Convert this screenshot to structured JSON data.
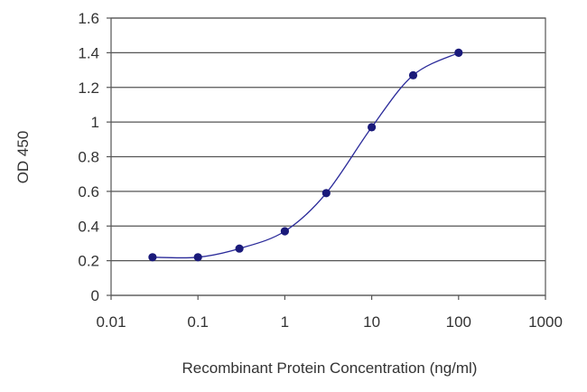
{
  "chart_data": {
    "type": "scatter",
    "title": "",
    "xlabel": "Recombinant Protein Concentration (ng/ml)",
    "ylabel": "OD 450",
    "x_scale": "log",
    "xlim": [
      0.01,
      1000
    ],
    "ylim": [
      0,
      1.6
    ],
    "x_ticks": [
      "0.01",
      "0.1",
      "1",
      "10",
      "100",
      "1000"
    ],
    "x_tick_values": [
      0.01,
      0.1,
      1,
      10,
      100,
      1000
    ],
    "y_ticks": [
      "0",
      "0.2",
      "0.4",
      "0.6",
      "0.8",
      "1",
      "1.2",
      "1.4",
      "1.6"
    ],
    "y_tick_values": [
      0,
      0.2,
      0.4,
      0.6,
      0.8,
      1,
      1.2,
      1.4,
      1.6
    ],
    "grid": "horizontal",
    "legend": "none",
    "series": [
      {
        "x": [
          0.03,
          0.1,
          0.3,
          1,
          3,
          10,
          30,
          100
        ],
        "y": [
          0.22,
          0.22,
          0.27,
          0.37,
          0.59,
          0.97,
          1.27,
          1.4
        ],
        "fit_curve": true
      }
    ],
    "colors": {
      "marker": "#1a1a7a",
      "curve": "#2b2b9a",
      "grid": "#555555"
    }
  }
}
